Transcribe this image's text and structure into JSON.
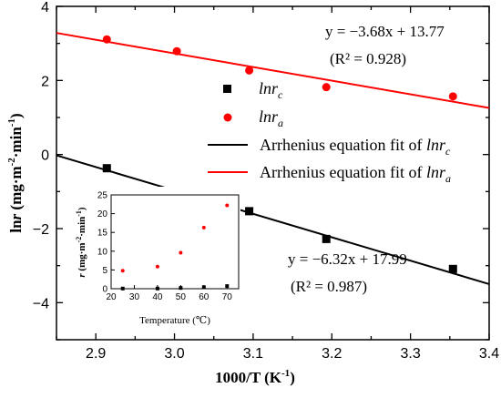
{
  "chart_data": [
    {
      "type": "scatter",
      "xlabel": "1000/T (K",
      "xlabel_sup": "-1",
      "xlabel_end": ")",
      "ylabel_parts": [
        "ln",
        "r",
        " (mg·m",
        "-2",
        "·min",
        "-1",
        ")"
      ],
      "xlim": [
        2.85,
        3.4
      ],
      "ylim": [
        -5,
        4
      ],
      "xticks": [
        "2.9",
        "3.0",
        "3.1",
        "3.2",
        "3.3",
        "3.4"
      ],
      "yticks": [
        "-4",
        "-2",
        "0",
        "2",
        "4"
      ],
      "series": [
        {
          "name": "lnr_c",
          "legend_main": "lnr",
          "legend_sub": "c",
          "marker": "square",
          "color": "#000000",
          "x": [
            2.914,
            3.003,
            3.095,
            3.193,
            3.354
          ],
          "y": [
            -0.37,
            -1.07,
            -1.53,
            -2.28,
            -3.09
          ]
        },
        {
          "name": "lnr_a",
          "legend_main": "lnr",
          "legend_sub": "a",
          "marker": "circle",
          "color": "#ff0000",
          "x": [
            2.914,
            3.003,
            3.095,
            3.193,
            3.354
          ],
          "y": [
            3.11,
            2.79,
            2.27,
            1.82,
            1.57
          ]
        }
      ],
      "fit_lines": [
        {
          "legend": "Arrhenius equation fit of ",
          "legend_main": "lnr",
          "legend_sub": "c",
          "color": "#000000",
          "slope": -6.32,
          "intercept": 17.99,
          "equation": "y = −6.32x + 17.99",
          "r2": "(R² = 0.987)"
        },
        {
          "legend": "Arrhenius equation fit of ",
          "legend_main": "lnr",
          "legend_sub": "a",
          "color": "#ff0000",
          "slope": -3.68,
          "intercept": 13.77,
          "equation": "y = −3.68x + 13.77",
          "r2": "(R² = 0.928)"
        }
      ]
    },
    {
      "type": "scatter",
      "xlabel": "Temperature (℃)",
      "ylabel_parts": [
        "r",
        " (mg·m",
        "-2",
        "·min",
        "-1",
        ")"
      ],
      "xlim": [
        20,
        75
      ],
      "ylim": [
        0,
        25
      ],
      "xticks": [
        "20",
        "30",
        "40",
        "50",
        "60",
        "70"
      ],
      "yticks": [
        "0",
        "5",
        "10",
        "15",
        "20",
        "25"
      ],
      "series": [
        {
          "name": "r_c",
          "marker": "square",
          "color": "#000000",
          "x": [
            25,
            40,
            50,
            60,
            70
          ],
          "y": [
            0.05,
            0.05,
            0.2,
            0.4,
            0.7
          ]
        },
        {
          "name": "r_a",
          "marker": "circle",
          "color": "#ff0000",
          "x": [
            25,
            40,
            50,
            60,
            70
          ],
          "y": [
            4.8,
            5.9,
            9.6,
            16.3,
            22.2
          ]
        }
      ]
    }
  ]
}
